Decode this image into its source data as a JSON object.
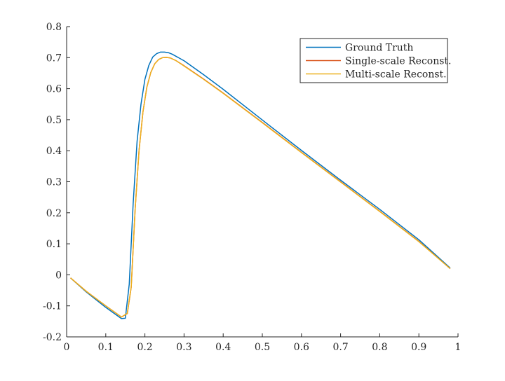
{
  "chart_data": {
    "type": "line",
    "title": "",
    "xlabel": "",
    "ylabel": "",
    "xlim": [
      0,
      1
    ],
    "ylim": [
      -0.2,
      0.8
    ],
    "xticks": [
      0,
      0.1,
      0.2,
      0.3,
      0.4,
      0.5,
      0.6,
      0.7,
      0.8,
      0.9,
      1
    ],
    "xtick_labels": [
      "0",
      "0.1",
      "0.2",
      "0.3",
      "0.4",
      "0.5",
      "0.6",
      "0.7",
      "0.8",
      "0.9",
      "1"
    ],
    "yticks": [
      -0.2,
      -0.1,
      0,
      0.1,
      0.2,
      0.3,
      0.4,
      0.5,
      0.6,
      0.7,
      0.8
    ],
    "ytick_labels": [
      "-0.2",
      "-0.1",
      "0",
      "0.1",
      "0.2",
      "0.3",
      "0.4",
      "0.5",
      "0.6",
      "0.7",
      "0.8"
    ],
    "grid": false,
    "legend_position": "top-right",
    "series": [
      {
        "name": "Ground Truth",
        "color": "#0072BD",
        "x": [
          0.01,
          0.05,
          0.1,
          0.14,
          0.15,
          0.16,
          0.17,
          0.18,
          0.19,
          0.2,
          0.21,
          0.22,
          0.23,
          0.24,
          0.25,
          0.26,
          0.27,
          0.3,
          0.35,
          0.4,
          0.5,
          0.6,
          0.7,
          0.8,
          0.9,
          0.98
        ],
        "y": [
          -0.01,
          -0.055,
          -0.105,
          -0.141,
          -0.14,
          -0.03,
          0.23,
          0.43,
          0.55,
          0.63,
          0.675,
          0.702,
          0.713,
          0.718,
          0.718,
          0.716,
          0.711,
          0.69,
          0.645,
          0.598,
          0.499,
          0.401,
          0.305,
          0.211,
          0.113,
          0.022
        ]
      },
      {
        "name": "Single-scale Reconst.",
        "color": "#D95319",
        "x": [
          0.01,
          0.05,
          0.1,
          0.14,
          0.155,
          0.165,
          0.175,
          0.185,
          0.195,
          0.205,
          0.215,
          0.225,
          0.235,
          0.245,
          0.255,
          0.265,
          0.28,
          0.3,
          0.35,
          0.4,
          0.5,
          0.6,
          0.7,
          0.8,
          0.9,
          0.98
        ],
        "y": [
          -0.01,
          -0.053,
          -0.1,
          -0.136,
          -0.125,
          -0.04,
          0.21,
          0.4,
          0.525,
          0.605,
          0.652,
          0.68,
          0.694,
          0.7,
          0.701,
          0.699,
          0.69,
          0.674,
          0.631,
          0.586,
          0.491,
          0.395,
          0.3,
          0.205,
          0.108,
          0.02
        ]
      },
      {
        "name": "Multi-scale Reconst.",
        "color": "#EDB120",
        "x": [
          0.01,
          0.05,
          0.1,
          0.14,
          0.155,
          0.165,
          0.175,
          0.185,
          0.195,
          0.205,
          0.215,
          0.225,
          0.235,
          0.245,
          0.255,
          0.265,
          0.28,
          0.3,
          0.35,
          0.4,
          0.5,
          0.6,
          0.7,
          0.8,
          0.9,
          0.98
        ],
        "y": [
          -0.01,
          -0.053,
          -0.1,
          -0.136,
          -0.124,
          -0.04,
          0.21,
          0.4,
          0.525,
          0.605,
          0.652,
          0.68,
          0.694,
          0.7,
          0.701,
          0.699,
          0.69,
          0.673,
          0.63,
          0.585,
          0.49,
          0.394,
          0.299,
          0.204,
          0.107,
          0.02
        ]
      }
    ]
  }
}
